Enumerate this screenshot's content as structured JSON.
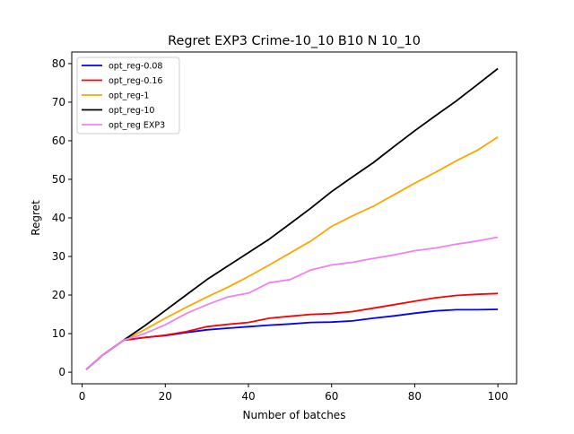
{
  "chart_data": {
    "type": "line",
    "title": "Regret EXP3 Crime-10_10 B10 N 10_10",
    "xlabel": "Number of batches",
    "ylabel": "Regret",
    "xlim": [
      -2.5,
      104.5
    ],
    "ylim": [
      -3,
      83
    ],
    "xticks": [
      0,
      20,
      40,
      60,
      80,
      100
    ],
    "yticks": [
      0,
      10,
      20,
      30,
      40,
      50,
      60,
      70,
      80
    ],
    "grid": false,
    "legend_position": "upper left",
    "x": [
      1,
      5,
      10,
      15,
      20,
      25,
      30,
      35,
      40,
      45,
      50,
      55,
      60,
      65,
      70,
      75,
      80,
      85,
      90,
      95,
      100
    ],
    "series": [
      {
        "name": "opt_reg-0.08",
        "color": "#0000ff",
        "values": [
          0.7,
          4.5,
          8.3,
          9.0,
          9.5,
          10.3,
          11.0,
          11.4,
          11.8,
          12.2,
          12.5,
          12.9,
          13.0,
          13.3,
          14.0,
          14.6,
          15.3,
          15.9,
          16.2,
          16.2,
          16.3
        ]
      },
      {
        "name": "opt_reg-0.16",
        "color": "#ff0000",
        "values": [
          0.7,
          4.5,
          8.3,
          9.0,
          9.6,
          10.5,
          11.8,
          12.4,
          12.9,
          14.0,
          14.5,
          15.0,
          15.2,
          15.7,
          16.6,
          17.5,
          18.4,
          19.3,
          19.9,
          20.2,
          20.4
        ]
      },
      {
        "name": "opt_reg-1",
        "color": "#ffa500",
        "values": [
          0.7,
          4.5,
          8.3,
          11.0,
          14.0,
          16.8,
          19.5,
          22.0,
          24.8,
          27.8,
          30.9,
          34.0,
          37.8,
          40.5,
          43.0,
          46.0,
          49.0,
          51.8,
          54.8,
          57.5,
          61.0
        ]
      },
      {
        "name": "opt_reg-10",
        "color": "#000000",
        "values": [
          0.7,
          4.5,
          8.3,
          12.0,
          16.0,
          20.0,
          24.0,
          27.5,
          31.0,
          34.5,
          38.5,
          42.5,
          46.8,
          50.6,
          54.3,
          58.5,
          62.6,
          66.5,
          70.3,
          74.5,
          78.7
        ]
      },
      {
        "name": "opt_reg EXP3",
        "color": "#ee82ee",
        "values": [
          0.7,
          4.5,
          8.3,
          10.0,
          12.3,
          15.2,
          17.5,
          19.5,
          20.5,
          23.2,
          24.0,
          26.5,
          27.8,
          28.5,
          29.5,
          30.4,
          31.5,
          32.2,
          33.2,
          34.0,
          35.0
        ]
      }
    ]
  }
}
